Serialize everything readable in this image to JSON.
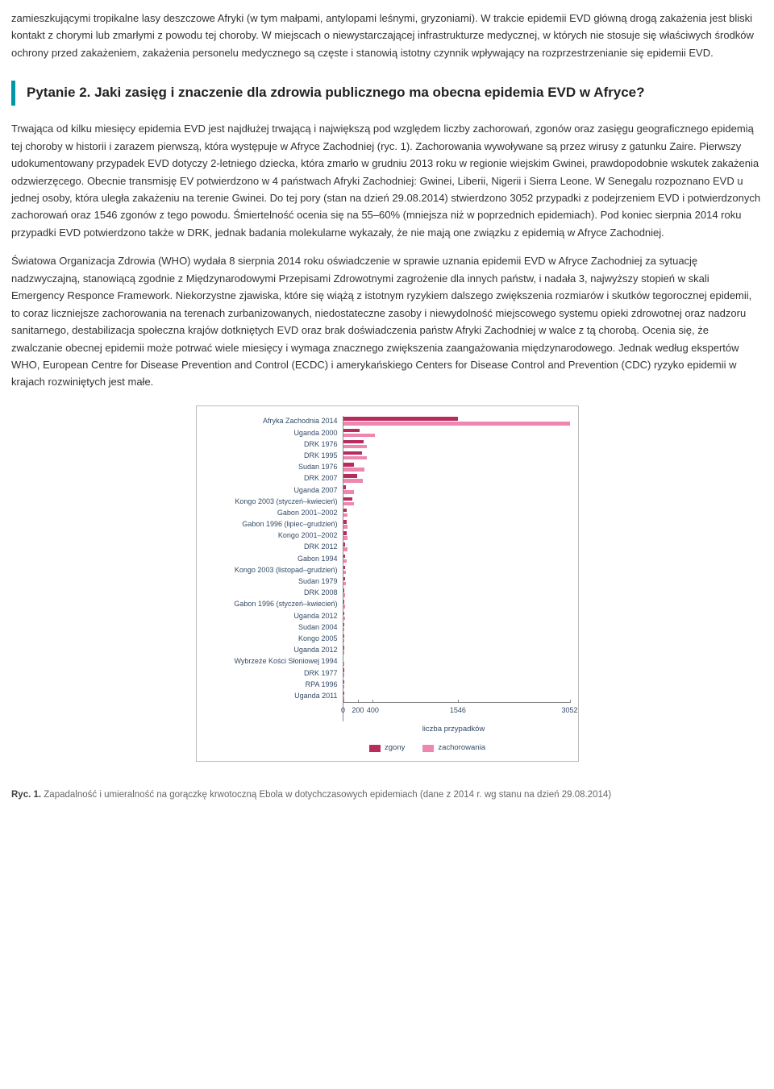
{
  "para1": "zamieszkującymi tropikalne lasy deszczowe Afryki (w tym małpami, antylopami leśnymi, gryzoniami). W trakcie epidemii EVD główną drogą zakażenia jest bliski kontakt z chorymi lub zmarłymi z powodu tej choroby. W miejscach o niewystarczającej infrastrukturze medycznej, w których nie stosuje się właściwych środków ochrony przed zakażeniem, zakażenia personelu medycznego są częste i stanowią istotny czynnik wpływający na rozprzestrzenianie się epidemii EVD.",
  "question_heading": "Pytanie 2. Jaki zasięg i znaczenie dla zdrowia publicznego ma obecna epidemia EVD w Afryce?",
  "para2": "Trwająca od kilku miesięcy epidemia EVD jest najdłużej trwającą i największą pod względem liczby zachorowań, zgonów oraz zasięgu geograficznego epidemią tej choroby w historii i zarazem pierwszą, która występuje w Afryce Zachodniej (ryc. 1). Zachorowania wywoływane są przez wirusy z gatunku Zaire. Pierwszy udokumentowany przypadek EVD dotyczy 2-letniego dziecka, która zmarło w grudniu 2013 roku w regionie wiejskim Gwinei, prawdopodobnie wskutek zakażenia odzwierzęcego. Obecnie transmisję EV potwierdzono w 4 państwach Afryki Zachodniej: Gwinei, Liberii, Nigerii i Sierra Leone. W Senegalu rozpoznano EVD u jednej osoby, która uległa zakażeniu na terenie Gwinei. Do tej pory (stan na dzień 29.08.2014) stwierdzono 3052 przypadki z podejrzeniem EVD i potwierdzonych zachorowań oraz 1546 zgonów z tego powodu. Śmiertelność ocenia się na 55–60% (mniejsza niż w poprzednich epidemiach). Pod koniec sierpnia 2014 roku przypadki EVD potwierdzono także w DRK, jednak badania molekularne wykazały, że nie mają one związku z epidemią w Afryce Zachodniej.",
  "para3": "Światowa Organizacja Zdrowia (WHO) wydała 8 sierpnia 2014 roku oświadczenie w sprawie uznania epidemii EVD w Afryce Zachodniej za sytuację nadzwyczajną, stanowiącą zgodnie z Międzynarodowymi Przepisami Zdrowotnymi zagrożenie dla innych państw, i nadała 3, najwyższy stopień w skali Emergency Responce Framework. Niekorzystne zjawiska, które się wiążą z istotnym ryzykiem dalszego zwiększenia rozmiarów i skutków tegorocznej epidemii, to coraz liczniejsze zachorowania na terenach zurbanizowanych, niedostateczne zasoby i niewydolność miejscowego systemu opieki zdrowotnej oraz nadzoru sanitarnego, destabilizacja społeczna krajów dotkniętych EVD oraz brak doświadczenia państw Afryki Zachodniej w walce z tą chorobą. Ocenia się, że zwalczanie obecnej epidemii może potrwać wiele miesięcy i wymaga znacznego zwiększenia zaangażowania międzynarodowego. Jednak według ekspertów WHO, European Centre for Disease Prevention and Control (ECDC) i amerykańskiego Centers for Disease Control and Prevention (CDC) ryzyko epidemii w krajach rozwiniętych jest małe.",
  "chart": {
    "xmax": 3052,
    "xlabel": "liczba przypadków",
    "ticks": [
      0,
      200,
      400,
      1546,
      3052
    ],
    "legend_deaths": "zgony",
    "legend_cases": "zachorowania",
    "deaths_color": "#b92b5d",
    "cases_color": "#ed87b0",
    "rows": [
      {
        "label": "Afryka Zachodnia 2014",
        "deaths": 1546,
        "cases": 3052
      },
      {
        "label": "Uganda 2000",
        "deaths": 224,
        "cases": 425
      },
      {
        "label": "DRK 1976",
        "deaths": 280,
        "cases": 318
      },
      {
        "label": "DRK 1995",
        "deaths": 254,
        "cases": 315
      },
      {
        "label": "Sudan 1976",
        "deaths": 151,
        "cases": 284
      },
      {
        "label": "DRK 2007",
        "deaths": 187,
        "cases": 264
      },
      {
        "label": "Uganda 2007",
        "deaths": 37,
        "cases": 149
      },
      {
        "label": "Kongo 2003 (styczeń–kwiecień)",
        "deaths": 128,
        "cases": 143
      },
      {
        "label": "Gabon 2001–2002",
        "deaths": 53,
        "cases": 65
      },
      {
        "label": "Gabon 1996 (lipiec–grudzień)",
        "deaths": 45,
        "cases": 60
      },
      {
        "label": "Kongo 2001–2002",
        "deaths": 44,
        "cases": 59
      },
      {
        "label": "DRK 2012",
        "deaths": 29,
        "cases": 57
      },
      {
        "label": "Gabon 1994",
        "deaths": 31,
        "cases": 52
      },
      {
        "label": "Kongo 2003 (listopad–grudzień)",
        "deaths": 29,
        "cases": 35
      },
      {
        "label": "Sudan 1979",
        "deaths": 22,
        "cases": 34
      },
      {
        "label": "DRK 2008",
        "deaths": 14,
        "cases": 32
      },
      {
        "label": "Gabon 1996 (styczeń–kwiecień)",
        "deaths": 21,
        "cases": 31
      },
      {
        "label": "Uganda 2012",
        "deaths": 17,
        "cases": 24
      },
      {
        "label": "Sudan 2004",
        "deaths": 7,
        "cases": 17
      },
      {
        "label": "Kongo 2005",
        "deaths": 10,
        "cases": 12
      },
      {
        "label": "Uganda 2012",
        "deaths": 4,
        "cases": 7
      },
      {
        "label": "Wybrzeże Kości Słoniowej 1994",
        "deaths": 0,
        "cases": 1
      },
      {
        "label": "DRK 1977",
        "deaths": 1,
        "cases": 1
      },
      {
        "label": "RPA 1996",
        "deaths": 1,
        "cases": 1
      },
      {
        "label": "Uganda 2011",
        "deaths": 1,
        "cases": 1
      }
    ]
  },
  "fig_label": "Ryc. 1.",
  "fig_text": " Zapadalność i umieralność na gorączkę krwotoczną Ebola w dotychczasowych epidemiach (dane z 2014 r. wg stanu na dzień 29.08.2014)"
}
